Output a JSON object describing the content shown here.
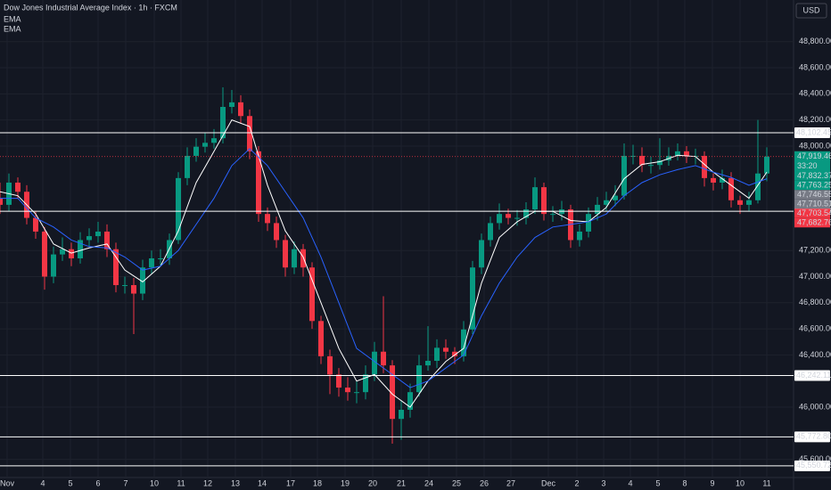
{
  "header": {
    "symbol": "Dow Jones Industrial Average Index · 1h · FXCM",
    "currency": "USD"
  },
  "chart_data": {
    "type": "candlestick",
    "x": [
      0,
      1,
      2,
      3,
      4,
      5,
      6,
      7,
      8,
      9,
      10,
      11,
      12,
      13,
      14,
      15,
      16,
      17,
      18,
      19,
      20,
      21,
      22,
      23,
      24,
      25,
      26,
      27,
      28,
      29,
      30,
      31,
      32,
      33,
      34,
      35,
      36,
      37,
      38,
      39,
      40,
      41,
      42,
      43,
      44,
      45,
      46,
      47,
      48,
      49,
      50,
      51,
      52,
      53,
      54,
      55,
      56,
      57,
      58,
      59,
      60,
      61,
      62,
      63,
      64,
      65,
      66,
      67,
      68,
      69,
      70,
      71,
      72,
      73,
      74,
      75,
      76,
      77,
      78,
      79,
      80,
      81,
      82,
      83,
      84,
      85,
      86
    ],
    "open": [
      47600,
      47550,
      47720,
      47650,
      47450,
      47345,
      47000,
      47170,
      47210,
      47140,
      47280,
      47310,
      47345,
      47210,
      46935,
      46935,
      46870,
      47070,
      47140,
      47140,
      47280,
      47755,
      47925,
      47995,
      48025,
      48060,
      48300,
      48335,
      48230,
      47960,
      47480,
      47410,
      47280,
      47070,
      47210,
      47070,
      46660,
      46390,
      46250,
      46150,
      46115,
      46115,
      46250,
      46425,
      46320,
      45910,
      45980,
      46115,
      46320,
      46355,
      46455,
      46425,
      46390,
      46595,
      47070,
      47280,
      47410,
      47480,
      47450,
      47450,
      47515,
      47685,
      47480,
      47480,
      47515,
      47280,
      47345,
      47480,
      47550,
      47585,
      47620,
      47925,
      47925,
      47855,
      47855,
      47890,
      47925,
      47960,
      47925,
      47925,
      47755,
      47720,
      47755,
      47585,
      47550,
      47585,
      47790
    ],
    "high": [
      47720,
      47790,
      47760,
      47700,
      47500,
      47380,
      47230,
      47300,
      47260,
      47340,
      47370,
      47420,
      47400,
      47260,
      47000,
      46990,
      47130,
      47200,
      47210,
      47330,
      47800,
      47990,
      48060,
      48100,
      48130,
      48450,
      48430,
      48390,
      48280,
      48000,
      47530,
      47460,
      47320,
      47270,
      47250,
      47110,
      46700,
      46440,
      46300,
      46230,
      46200,
      46320,
      46500,
      46850,
      46360,
      46050,
      46180,
      46400,
      46620,
      46520,
      46520,
      46460,
      46660,
      47120,
      47330,
      47460,
      47560,
      47520,
      47510,
      47570,
      47760,
      47720,
      47540,
      47580,
      47550,
      47400,
      47530,
      47610,
      47650,
      47700,
      48020,
      48010,
      47990,
      47920,
      48060,
      47990,
      48020,
      48000,
      47980,
      47960,
      47790,
      47820,
      47800,
      47620,
      47650,
      48200,
      47990
    ],
    "low": [
      47480,
      47500,
      47600,
      47400,
      47290,
      46900,
      46950,
      47120,
      47080,
      47100,
      47230,
      47260,
      47150,
      46880,
      46870,
      46560,
      46820,
      47020,
      47080,
      47090,
      47250,
      47700,
      47880,
      47950,
      47980,
      48020,
      48250,
      48170,
      47900,
      47420,
      47350,
      47220,
      47000,
      47020,
      47000,
      46600,
      46330,
      46100,
      46080,
      46050,
      46030,
      46060,
      46200,
      46260,
      45720,
      45750,
      45920,
      46080,
      46280,
      46300,
      46370,
      46330,
      46350,
      46560,
      47020,
      47230,
      47360,
      47400,
      47390,
      47400,
      47480,
      47430,
      47420,
      47430,
      47220,
      47230,
      47300,
      47430,
      47500,
      47540,
      47590,
      47860,
      47800,
      47790,
      47820,
      47850,
      47890,
      47870,
      47860,
      47690,
      47660,
      47670,
      47530,
      47480,
      47500,
      47560,
      47730
    ],
    "close": [
      47550,
      47720,
      47650,
      47450,
      47345,
      47000,
      47170,
      47210,
      47140,
      47280,
      47310,
      47345,
      47210,
      46935,
      46935,
      46870,
      47070,
      47140,
      47140,
      47280,
      47755,
      47925,
      47995,
      48025,
      48060,
      48300,
      48335,
      48230,
      47960,
      47480,
      47410,
      47280,
      47070,
      47210,
      47070,
      46660,
      46390,
      46250,
      46150,
      46115,
      46115,
      46250,
      46425,
      46320,
      45910,
      45980,
      46115,
      46320,
      46355,
      46455,
      46425,
      46390,
      46595,
      47070,
      47280,
      47410,
      47480,
      47450,
      47450,
      47515,
      47685,
      47480,
      47480,
      47515,
      47280,
      47345,
      47480,
      47550,
      47585,
      47620,
      47925,
      47925,
      47855,
      47855,
      47890,
      47925,
      47960,
      47925,
      47925,
      47755,
      47720,
      47755,
      47585,
      47550,
      47585,
      47790,
      47919.46
    ],
    "up_color": "#089981",
    "down_color": "#f23645",
    "series": [
      {
        "name": "EMA",
        "color": "#ffffff",
        "x": [
          0,
          2,
          4,
          6,
          8,
          10,
          12,
          14,
          16,
          18,
          20,
          22,
          24,
          26,
          28,
          30,
          32,
          34,
          36,
          38,
          40,
          42,
          44,
          46,
          48,
          50,
          52,
          54,
          56,
          58,
          60,
          62,
          64,
          66,
          68,
          70,
          72,
          74,
          76,
          78,
          80,
          82,
          84,
          86
        ],
        "values": [
          47650,
          47620,
          47480,
          47250,
          47180,
          47220,
          47250,
          47050,
          46960,
          47080,
          47350,
          47720,
          47960,
          48200,
          48150,
          47700,
          47350,
          47150,
          46800,
          46450,
          46200,
          46250,
          46100,
          46000,
          46200,
          46350,
          46450,
          46950,
          47300,
          47420,
          47500,
          47500,
          47430,
          47420,
          47530,
          47750,
          47860,
          47880,
          47930,
          47920,
          47800,
          47700,
          47600,
          47800
        ]
      },
      {
        "name": "EMA",
        "color": "#2962ff",
        "x": [
          0,
          2,
          4,
          6,
          8,
          10,
          12,
          14,
          16,
          18,
          20,
          22,
          24,
          26,
          28,
          30,
          32,
          34,
          36,
          38,
          40,
          42,
          44,
          46,
          48,
          50,
          52,
          54,
          56,
          58,
          60,
          62,
          64,
          66,
          68,
          70,
          72,
          74,
          76,
          78,
          80,
          82,
          84,
          86
        ],
        "values": [
          47600,
          47600,
          47450,
          47380,
          47280,
          47230,
          47220,
          47150,
          47050,
          47080,
          47200,
          47400,
          47600,
          47850,
          47980,
          47850,
          47650,
          47450,
          47150,
          46800,
          46450,
          46350,
          46250,
          46150,
          46200,
          46300,
          46400,
          46700,
          46950,
          47150,
          47300,
          47380,
          47400,
          47420,
          47480,
          47620,
          47720,
          47780,
          47820,
          47850,
          47800,
          47760,
          47700,
          47750
        ]
      }
    ],
    "xlim": [
      0,
      89
    ],
    "xticks": [
      {
        "value": 0.8,
        "label": "Nov"
      },
      {
        "value": 4.8,
        "label": "4"
      },
      {
        "value": 7.9,
        "label": "5"
      },
      {
        "value": 11,
        "label": "6"
      },
      {
        "value": 14.1,
        "label": "7"
      },
      {
        "value": 17.3,
        "label": "10"
      },
      {
        "value": 20.3,
        "label": "11"
      },
      {
        "value": 23.3,
        "label": "12"
      },
      {
        "value": 26.4,
        "label": "13"
      },
      {
        "value": 29.4,
        "label": "14"
      },
      {
        "value": 32.6,
        "label": "17"
      },
      {
        "value": 35.6,
        "label": "18"
      },
      {
        "value": 38.7,
        "label": "19"
      },
      {
        "value": 41.8,
        "label": "20"
      },
      {
        "value": 45,
        "label": "21"
      },
      {
        "value": 48.1,
        "label": "24"
      },
      {
        "value": 51.2,
        "label": "25"
      },
      {
        "value": 54.3,
        "label": "26"
      },
      {
        "value": 57.3,
        "label": "27"
      },
      {
        "value": 61.5,
        "label": "Dec"
      },
      {
        "value": 64.7,
        "label": "2"
      },
      {
        "value": 67.7,
        "label": "3"
      },
      {
        "value": 70.7,
        "label": "4"
      },
      {
        "value": 73.8,
        "label": "5"
      },
      {
        "value": 76.8,
        "label": "8"
      },
      {
        "value": 79.9,
        "label": "9"
      },
      {
        "value": 83,
        "label": "10"
      },
      {
        "value": 86,
        "label": "11"
      }
    ],
    "ylim": [
      45461,
      49119
    ],
    "yticks": [
      {
        "value": 48800,
        "label": "48,800.00"
      },
      {
        "value": 48600,
        "label": "48,600.00"
      },
      {
        "value": 48400,
        "label": "48,400.00"
      },
      {
        "value": 48200,
        "label": "48,200.00"
      },
      {
        "value": 48000,
        "label": "48,000.00"
      },
      {
        "value": 47200,
        "label": "47,200.00"
      },
      {
        "value": 47000,
        "label": "47,000.00"
      },
      {
        "value": 46800,
        "label": "46,800.00"
      },
      {
        "value": 46600,
        "label": "46,600.00"
      },
      {
        "value": 46400,
        "label": "46,400.00"
      },
      {
        "value": 46000,
        "label": "46,000.00"
      },
      {
        "value": 45600,
        "label": "45,600.00"
      }
    ],
    "levels": [
      {
        "value": 48102.45,
        "label": "48,102.45"
      },
      {
        "value": 47500.63,
        "label": "47,500.63"
      },
      {
        "value": 46242.11,
        "label": "46,242.11"
      },
      {
        "value": 45772.8,
        "label": "45,772.80"
      },
      {
        "value": 45550.72,
        "label": "45,550.72"
      }
    ],
    "price_tags": [
      {
        "value": 47919.46,
        "label": "47,919.46",
        "color": "#089981"
      },
      {
        "value": 47832.37,
        "label": "47,832.37",
        "color": "#089981"
      },
      {
        "value": 47763.25,
        "label": "47,763.25",
        "color": "#089981"
      },
      {
        "value": 47746.55,
        "label": "47,746.55",
        "color": "#787b86"
      },
      {
        "value": 47710.51,
        "label": "47,710.51",
        "color": "#787b86"
      },
      {
        "value": 47703.54,
        "label": "47,703.54",
        "color": "#f23645"
      },
      {
        "value": 47682.76,
        "label": "47,682.76",
        "color": "#f23645"
      }
    ],
    "countdown": "33:20",
    "grid": true
  }
}
